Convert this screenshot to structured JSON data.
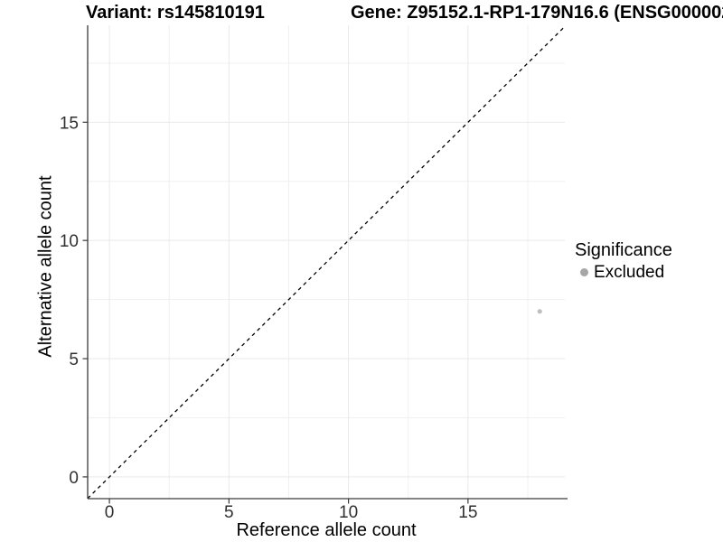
{
  "chart_data": {
    "type": "scatter",
    "title_left": "Variant: rs145810191",
    "title_right": "Gene: Z95152.1-RP1-179N16.6 (ENSG000002",
    "xlabel": "Reference allele count",
    "ylabel": "Alternative allele count",
    "xlim": [
      -0.91,
      19.05
    ],
    "ylim": [
      -0.92,
      19.1
    ],
    "xticks": [
      0,
      5,
      10,
      15
    ],
    "yticks": [
      0,
      5,
      10,
      15
    ],
    "xticks_minor": [
      2.5,
      7.5,
      12.5,
      17.5
    ],
    "yticks_minor": [
      2.5,
      7.5,
      12.5,
      17.5
    ],
    "grid": "major+minor",
    "legend_position": "right",
    "identity_line": {
      "slope": 1,
      "intercept": 0,
      "linetype": "dashed",
      "color": "#000000"
    },
    "series": [
      {
        "name": "Excluded",
        "color": "#bfbfbf",
        "point_radius": 2.6,
        "points": [
          {
            "x": 18,
            "y": 7
          }
        ]
      }
    ],
    "legend": {
      "title": "Significance",
      "items": [
        {
          "label": "Excluded",
          "color": "#a6a6a6"
        }
      ]
    },
    "colors": {
      "background": "#ffffff",
      "grid_major": "#e9e9e9",
      "grid_minor": "#f0f0f0",
      "axis_line": "#3a3a3a",
      "tick_label": "#303030",
      "title": "#000000"
    }
  }
}
